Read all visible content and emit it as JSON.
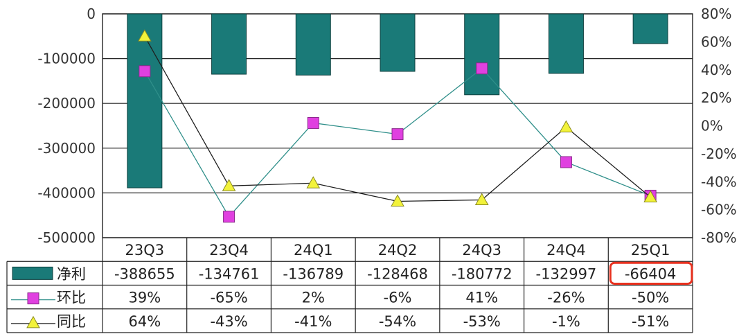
{
  "chart_data": {
    "type": "bar",
    "categories": [
      "23Q3",
      "23Q4",
      "24Q1",
      "24Q2",
      "24Q3",
      "24Q4",
      "25Q1"
    ],
    "y_left": {
      "ticks": [
        "0",
        "-100000",
        "-200000",
        "-300000",
        "-400000",
        "-500000"
      ],
      "ylim": [
        -500000,
        0
      ]
    },
    "y_right": {
      "ticks": [
        "80%",
        "60%",
        "40%",
        "20%",
        "0%",
        "-20%",
        "-40%",
        "-60%",
        "-80%"
      ],
      "ylim": [
        -80,
        80
      ]
    },
    "grid": true,
    "series": [
      {
        "name": "净利",
        "kind": "bar",
        "axis": "left",
        "color": "#1a7a78",
        "values": [
          -388655,
          -134761,
          -136789,
          -128468,
          -180772,
          -132997,
          -66404
        ],
        "labels": [
          "-388655",
          "-134761",
          "-136789",
          "-128468",
          "-180772",
          "-132997",
          "-66404"
        ]
      },
      {
        "name": "环比",
        "kind": "line",
        "axis": "right",
        "marker": "square",
        "color": "#e040e0",
        "values": [
          39,
          -65,
          2,
          -6,
          41,
          -26,
          -50
        ],
        "labels": [
          "39%",
          "-65%",
          "2%",
          "-6%",
          "41%",
          "-26%",
          "-50%"
        ]
      },
      {
        "name": "同比",
        "kind": "line",
        "axis": "right",
        "marker": "triangle",
        "color": "#f2f23a",
        "values": [
          64,
          -43,
          -41,
          -54,
          -53,
          -1,
          -51
        ],
        "labels": [
          "64%",
          "-43%",
          "-41%",
          "-54%",
          "-53%",
          "-1%",
          "-51%"
        ]
      }
    ],
    "highlight": {
      "series": "净利",
      "category": "25Q1",
      "color": "#e8311f"
    }
  }
}
